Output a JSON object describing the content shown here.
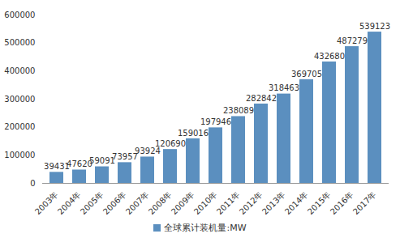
{
  "chart_data": {
    "type": "bar",
    "categories": [
      "2003年",
      "2004年",
      "2005年",
      "2006年",
      "2007年",
      "2008年",
      "2009年",
      "2010年",
      "2011年",
      "2012年",
      "2013年",
      "2014年",
      "2015年",
      "2016年",
      "2017年"
    ],
    "series": [
      {
        "name": "全球累计装机量:MW",
        "color": "#5b8fbf",
        "values": [
          39431,
          47620,
          59091,
          73957,
          93924,
          120690,
          159016,
          197946,
          238089,
          282842,
          318463,
          369705,
          432680,
          487279,
          539123
        ]
      }
    ],
    "ylim": [
      0,
      600000
    ],
    "yticks": [
      0,
      100000,
      200000,
      300000,
      400000,
      500000,
      600000
    ],
    "grid": false,
    "data_labels": true,
    "legend": "bottom"
  }
}
